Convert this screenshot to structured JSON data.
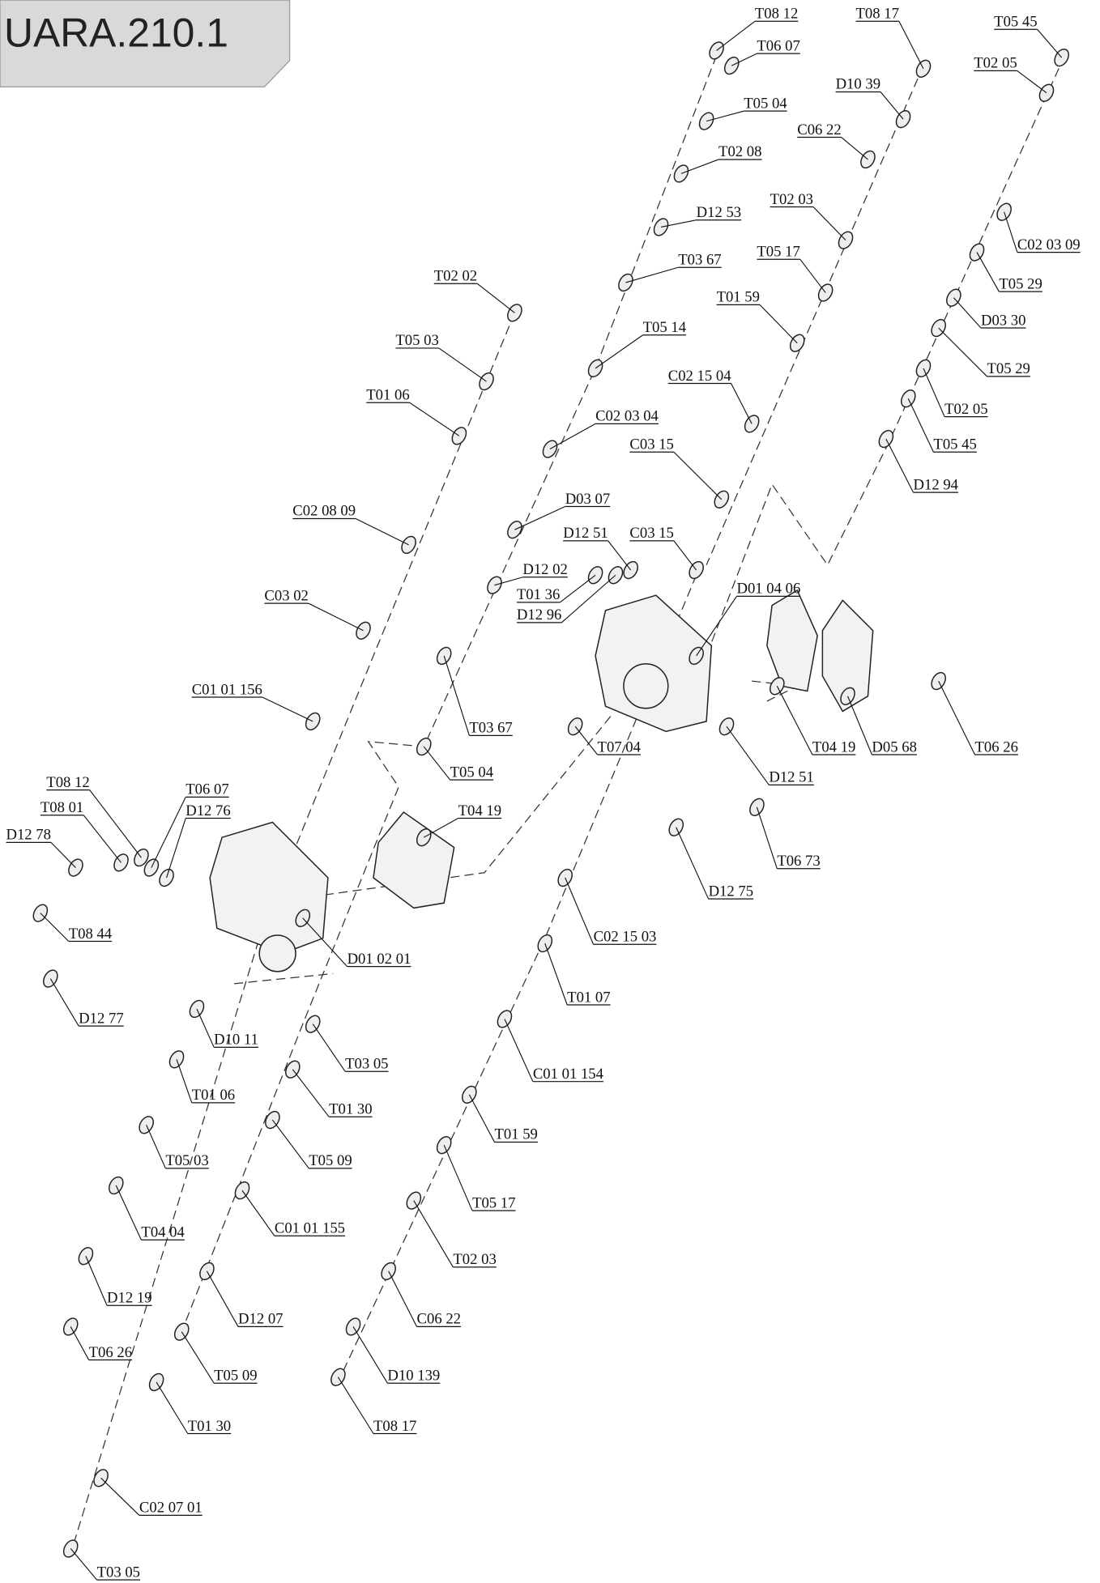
{
  "title": "UARA.210.1",
  "labels": [
    "T08 12",
    "T06 07",
    "T08 17",
    "T05 45",
    "T02 05",
    "D10 39",
    "T05 04",
    "C06 22",
    "T02 08",
    "D12 53",
    "T02 03",
    "C02 03 09",
    "T03 67",
    "T05 17",
    "T05 29",
    "T01 59",
    "T02 02",
    "D03 30",
    "T05 14",
    "T05 03",
    "T05 29",
    "C02 15 04",
    "T01 06",
    "T02 05",
    "C02 03 04",
    "T05 45",
    "C03 15",
    "D12 94",
    "D03 07",
    "C02 08 09",
    "D12 51",
    "C03 15",
    "D12 02",
    "T01 36",
    "D12 96",
    "D01 04 06",
    "C03 02",
    "C01 01 156",
    "T07 04",
    "T04 19",
    "D05 68",
    "T06 26",
    "T03 67",
    "T05 04",
    "D12 51",
    "T08 12",
    "T06 07",
    "T08 01",
    "D12 76",
    "D12 78",
    "T04 19",
    "T06 73",
    "D12 75",
    "T08 44",
    "D01 02 01",
    "C02 15 03",
    "T01 07",
    "D12 77",
    "D10 11",
    "T03 05",
    "C01 01 154",
    "T01 06",
    "T01 30",
    "T01 59",
    "T05 03",
    "T05 09",
    "T05 17",
    "T04 04",
    "C01 01 155",
    "T02 03",
    "D12 19",
    "D12 07",
    "C06 22",
    "T06 26",
    "T05 09",
    "D10 139",
    "T01 30",
    "T08 17",
    "C02 07 01",
    "T03 05"
  ]
}
